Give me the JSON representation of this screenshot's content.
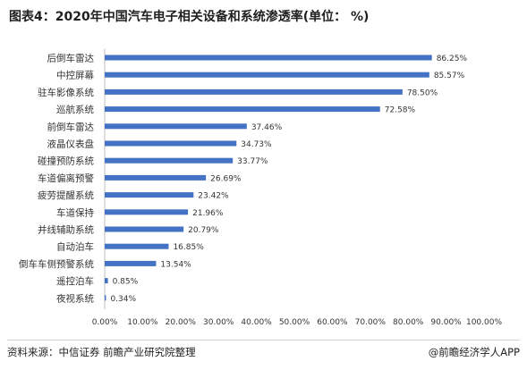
{
  "title": "图表4：2020年中国汽车电子相关设备和系统渗透率(单位： %)",
  "source": "资料来源：中信证券 前瞻产业研究院整理",
  "credit": "@前瞻经济学人APP",
  "bar_color": "#4472c4",
  "chart_data": {
    "type": "bar",
    "orientation": "horizontal",
    "title": "图表4：2020年中国汽车电子相关设备和系统渗透率(单位： %)",
    "categories": [
      "后倒车雷达",
      "中控屏幕",
      "驻车影像系统",
      "巡航系统",
      "前倒车雷达",
      "液晶仪表盘",
      "碰撞预防系统",
      "车道偏离预警",
      "疲劳提醒系统",
      "车道保持",
      "并线辅助系统",
      "自动泊车",
      "倒车车侧预警系统",
      "遥控泊车",
      "夜视系统"
    ],
    "values": [
      86.25,
      85.57,
      78.5,
      72.58,
      37.46,
      34.73,
      33.77,
      26.69,
      23.42,
      21.96,
      20.79,
      16.85,
      13.54,
      0.85,
      0.34
    ],
    "value_labels": [
      "86.25%",
      "85.57%",
      "78.50%",
      "72.58%",
      "37.46%",
      "34.73%",
      "33.77%",
      "26.69%",
      "23.42%",
      "21.96%",
      "20.79%",
      "16.85%",
      "13.54%",
      "0.85%",
      "0.34%"
    ],
    "xlim": [
      0,
      100
    ],
    "x_ticks": [
      "0.00%",
      "10.00%",
      "20.00%",
      "30.00%",
      "40.00%",
      "50.00%",
      "60.00%",
      "70.00%",
      "80.00%",
      "90.00%",
      "100.00%"
    ],
    "grid": false,
    "legend": "none"
  }
}
